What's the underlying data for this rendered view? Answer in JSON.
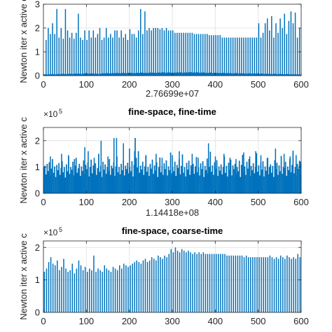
{
  "colors": {
    "bar": "#0072BD",
    "axis": "#262626",
    "grid": "#dfdfdf"
  },
  "chart_data": [
    {
      "type": "bar",
      "title": "",
      "xlabel": "2.76699e+07",
      "ylabel": "Newton iter x active c",
      "multiplier": "",
      "xlim": [
        0,
        600
      ],
      "ylim": [
        0,
        3
      ],
      "xticks": [
        "0",
        "100",
        "200",
        "300",
        "400",
        "500",
        "600"
      ],
      "yticks": [
        "0",
        "1",
        "2",
        "3"
      ],
      "grid": true,
      "base_values": [
        0.05,
        0.06,
        0.05,
        0.06,
        0.05,
        0.06,
        0.07,
        0.06,
        0.05,
        0.06,
        0.07,
        0.06,
        0.07,
        0.08,
        0.07,
        0.06,
        0.07,
        0.08,
        0.07,
        0.08,
        0.07,
        0.08,
        0.09,
        0.08,
        0.09,
        0.08,
        0.07,
        0.08,
        0.09,
        0.1,
        0.09,
        0.08,
        0.09,
        0.1,
        0.09,
        0.08,
        0.09,
        0.08,
        0.07,
        0.08,
        0.09,
        0.1,
        0.09,
        0.1,
        0.11,
        0.1,
        0.09,
        0.1,
        0.11,
        0.1,
        0.11,
        0.12,
        0.11,
        0.1,
        0.11,
        0.12,
        0.11,
        0.1,
        0.11,
        0.12,
        0.11,
        0.12,
        0.11,
        0.1,
        0.11,
        0.12,
        0.11,
        0.12,
        0.13,
        0.12,
        0.11,
        0.12,
        0.11,
        0.12,
        0.13,
        0.12,
        0.13,
        0.12,
        0.11,
        0.12,
        0.13,
        0.12,
        0.13,
        0.14,
        0.13,
        0.12,
        0.13,
        0.14,
        0.13,
        0.12,
        0.13,
        0.12,
        0.13,
        0.14,
        0.13,
        0.14,
        0.13,
        0.12,
        0.13,
        0.14,
        0.13,
        0.14,
        0.15,
        0.14,
        0.13,
        0.14,
        0.13,
        0.14,
        0.13,
        0.12,
        0.13,
        0.14,
        0.13,
        0.12,
        0.11,
        0.12,
        0.13,
        0.12,
        0.11,
        0.12,
        0.11,
        0.12,
        0.11,
        0.1,
        0.11,
        0.12,
        0.11,
        0.1,
        0.11,
        0.1,
        0.11,
        0.1,
        0.09,
        0.1,
        0.11,
        0.1,
        0.09,
        0.1,
        0.09,
        0.1,
        0.09,
        0.08,
        0.09,
        0.1,
        0.09,
        0.08,
        0.09,
        0.08,
        0.09,
        0.08,
        0.07,
        0.08,
        0.09,
        0.08,
        0.07,
        0.08,
        0.07,
        0.08,
        0.07,
        0.06,
        0.07,
        0.08,
        0.07,
        0.06,
        0.07,
        0.06,
        0.07,
        0.06,
        0.05,
        0.06,
        0.07,
        0.06,
        0.05,
        0.06,
        0.05,
        0.06,
        0.05,
        0.06,
        0.05,
        0.04
      ],
      "spikes": [
        {
          "x": 6,
          "y": 1.5
        },
        {
          "x": 11,
          "y": 2.0
        },
        {
          "x": 16,
          "y": 1.75
        },
        {
          "x": 21,
          "y": 2.2
        },
        {
          "x": 26,
          "y": 1.75
        },
        {
          "x": 31,
          "y": 2.8
        },
        {
          "x": 36,
          "y": 1.6
        },
        {
          "x": 41,
          "y": 2.0
        },
        {
          "x": 46,
          "y": 1.55
        },
        {
          "x": 51,
          "y": 2.8
        },
        {
          "x": 56,
          "y": 1.9
        },
        {
          "x": 61,
          "y": 1.6
        },
        {
          "x": 66,
          "y": 1.8
        },
        {
          "x": 71,
          "y": 1.55
        },
        {
          "x": 76,
          "y": 1.8
        },
        {
          "x": 81,
          "y": 2.6
        },
        {
          "x": 86,
          "y": 1.6
        },
        {
          "x": 91,
          "y": 1.5
        },
        {
          "x": 96,
          "y": 1.9
        },
        {
          "x": 101,
          "y": 1.5
        },
        {
          "x": 106,
          "y": 1.9
        },
        {
          "x": 111,
          "y": 1.6
        },
        {
          "x": 116,
          "y": 1.9
        },
        {
          "x": 121,
          "y": 1.6
        },
        {
          "x": 126,
          "y": 1.75
        },
        {
          "x": 131,
          "y": 2.0
        },
        {
          "x": 136,
          "y": 1.5
        },
        {
          "x": 141,
          "y": 1.6
        },
        {
          "x": 146,
          "y": 2.0
        },
        {
          "x": 151,
          "y": 1.6
        },
        {
          "x": 156,
          "y": 1.75
        },
        {
          "x": 161,
          "y": 1.6
        },
        {
          "x": 166,
          "y": 1.9
        },
        {
          "x": 171,
          "y": 1.9
        },
        {
          "x": 176,
          "y": 1.6
        },
        {
          "x": 181,
          "y": 1.9
        },
        {
          "x": 186,
          "y": 1.6
        },
        {
          "x": 191,
          "y": 1.75
        },
        {
          "x": 196,
          "y": 1.5
        },
        {
          "x": 201,
          "y": 1.95
        },
        {
          "x": 206,
          "y": 1.75
        },
        {
          "x": 211,
          "y": 1.75
        },
        {
          "x": 216,
          "y": 1.6
        },
        {
          "x": 221,
          "y": 1.9
        },
        {
          "x": 226,
          "y": 2.8
        },
        {
          "x": 231,
          "y": 1.75
        },
        {
          "x": 236,
          "y": 2.7
        },
        {
          "x": 241,
          "y": 1.9
        },
        {
          "x": 246,
          "y": 2.0
        },
        {
          "x": 251,
          "y": 1.9
        },
        {
          "x": 256,
          "y": 2.0
        },
        {
          "x": 261,
          "y": 2.0
        },
        {
          "x": 266,
          "y": 2.0
        },
        {
          "x": 271,
          "y": 1.95
        },
        {
          "x": 276,
          "y": 2.0
        },
        {
          "x": 281,
          "y": 1.9
        },
        {
          "x": 286,
          "y": 2.0
        },
        {
          "x": 291,
          "y": 1.9
        },
        {
          "x": 296,
          "y": 1.9
        },
        {
          "x": 301,
          "y": 1.9
        },
        {
          "x": 306,
          "y": 1.8
        },
        {
          "x": 311,
          "y": 1.8
        },
        {
          "x": 316,
          "y": 1.8
        },
        {
          "x": 321,
          "y": 1.8
        },
        {
          "x": 326,
          "y": 1.8
        },
        {
          "x": 331,
          "y": 1.8
        },
        {
          "x": 336,
          "y": 1.8
        },
        {
          "x": 341,
          "y": 1.8
        },
        {
          "x": 346,
          "y": 1.8
        },
        {
          "x": 351,
          "y": 1.75
        },
        {
          "x": 356,
          "y": 1.75
        },
        {
          "x": 361,
          "y": 1.75
        },
        {
          "x": 366,
          "y": 1.75
        },
        {
          "x": 371,
          "y": 1.75
        },
        {
          "x": 376,
          "y": 1.75
        },
        {
          "x": 381,
          "y": 1.75
        },
        {
          "x": 386,
          "y": 1.7
        },
        {
          "x": 391,
          "y": 1.7
        },
        {
          "x": 396,
          "y": 1.7
        },
        {
          "x": 401,
          "y": 1.7
        },
        {
          "x": 406,
          "y": 1.7
        },
        {
          "x": 411,
          "y": 1.7
        },
        {
          "x": 416,
          "y": 1.6
        },
        {
          "x": 421,
          "y": 1.6
        },
        {
          "x": 426,
          "y": 1.6
        },
        {
          "x": 431,
          "y": 1.6
        },
        {
          "x": 436,
          "y": 1.6
        },
        {
          "x": 441,
          "y": 1.6
        },
        {
          "x": 446,
          "y": 1.6
        },
        {
          "x": 451,
          "y": 1.6
        },
        {
          "x": 456,
          "y": 1.6
        },
        {
          "x": 461,
          "y": 1.6
        },
        {
          "x": 466,
          "y": 1.6
        },
        {
          "x": 471,
          "y": 1.6
        },
        {
          "x": 476,
          "y": 1.6
        },
        {
          "x": 481,
          "y": 1.6
        },
        {
          "x": 486,
          "y": 1.6
        },
        {
          "x": 491,
          "y": 1.6
        },
        {
          "x": 496,
          "y": 1.6
        },
        {
          "x": 501,
          "y": 2.2
        },
        {
          "x": 506,
          "y": 1.6
        },
        {
          "x": 511,
          "y": 1.8
        },
        {
          "x": 516,
          "y": 2.2
        },
        {
          "x": 521,
          "y": 2.4
        },
        {
          "x": 526,
          "y": 1.9
        },
        {
          "x": 531,
          "y": 2.5
        },
        {
          "x": 536,
          "y": 1.6
        },
        {
          "x": 541,
          "y": 2.2
        },
        {
          "x": 546,
          "y": 1.8
        },
        {
          "x": 551,
          "y": 2.4
        },
        {
          "x": 556,
          "y": 2.0
        },
        {
          "x": 561,
          "y": 2.6
        },
        {
          "x": 566,
          "y": 1.75
        },
        {
          "x": 571,
          "y": 2.3
        },
        {
          "x": 576,
          "y": 2.7
        },
        {
          "x": 581,
          "y": 2.2
        },
        {
          "x": 586,
          "y": 2.65
        },
        {
          "x": 591,
          "y": 1.6
        },
        {
          "x": 596,
          "y": 2.0
        }
      ]
    },
    {
      "type": "bar",
      "title": "fine-space, fine-time",
      "xlabel": "1.14418e+08",
      "ylabel": "Newton iter x active c",
      "multiplier": "×10",
      "multiplier_exp": "5",
      "xlim": [
        0,
        600
      ],
      "ylim": [
        0,
        2.5
      ],
      "xticks": [
        "0",
        "100",
        "200",
        "300",
        "400",
        "500",
        "600"
      ],
      "yticks": [
        "0",
        "1",
        "2"
      ],
      "grid": true,
      "values": [
        0.98,
        1.05,
        0.72,
        1.12,
        0.85,
        1.18,
        0.66,
        0.94,
        1.3,
        0.78,
        1.02,
        0.62,
        1.08,
        0.88,
        1.15,
        0.7,
        0.96,
        1.22,
        0.8,
        1.0,
        0.6,
        1.1,
        0.84,
        1.4,
        0.74,
        1.0,
        0.9,
        1.2,
        0.68,
        1.05,
        1.35,
        0.78,
        0.95,
        1.12,
        0.66,
        1.02,
        0.85,
        1.25,
        0.72,
        1.08,
        0.92,
        1.18,
        0.64,
        1.0,
        1.28,
        0.76,
        1.06,
        0.88,
        1.14,
        0.7,
        0.96,
        1.5,
        0.82,
        1.04,
        0.62,
        1.2,
        0.9,
        1.1,
        0.74,
        1.0,
        0.86,
        1.3,
        0.7,
        1.05,
        0.95,
        1.18,
        0.66,
        1.02,
        1.4,
        0.8,
        1.0,
        0.72,
        1.12,
        0.88,
        1.25,
        0.68,
        1.05,
        0.92,
        1.16,
        0.76,
        1.0,
        0.84,
        1.22,
        0.64,
        1.08,
        2.1,
        1.35,
        0.98,
        1.6,
        0.78,
        1.05,
        0.9,
        1.2,
        0.7,
        1.02,
        1.45,
        0.82,
        1.0,
        0.66,
        1.12,
        0.94,
        1.28,
        0.74,
        1.06,
        0.86,
        1.18,
        0.62,
        1.0,
        1.36,
        0.8,
        1.04,
        0.7,
        1.14,
        0.92,
        1.25,
        0.68,
        1.02,
        0.88,
        1.55,
        0.76,
        1.0,
        0.84,
        1.2,
        0.66,
        1.08,
        0.96,
        1.3,
        0.72,
        1.04,
        1.48,
        0.78,
        1.0,
        0.64,
        1.16,
        0.9,
        1.24,
        0.7,
        1.06,
        0.86,
        1.12,
        0.74,
        1.02,
        1.38,
        0.8,
        0.98,
        0.68,
        1.14,
        0.92,
        1.22,
        0.62,
        1.04,
        0.88,
        1.32,
        0.76,
        1.0,
        1.58,
        0.82,
        1.06,
        0.7,
        1.18,
        0.94,
        1.26,
        0.66,
        1.02,
        0.86,
        1.1,
        0.72,
        1.0,
        1.4,
        0.78,
        1.04,
        0.64,
        1.16,
        0.9,
        1.28,
        0.68,
        1.06,
        0.92,
        1.12,
        0.74,
        1.0,
        0.84,
        1.24,
        0.62,
        1.08,
        1.46,
        0.8,
        1.02,
        0.7,
        1.2,
        0.94,
        1.3,
        0.66,
        1.04,
        0.88,
        1.14,
        0.76,
        1.0,
        1.52,
        0.82,
        1.06,
        0.68,
        1.18,
        0.9,
        1.22,
        0.64,
        1.02,
        0.86,
        1.34,
        0.72,
        1.0,
        1.1,
        0.78,
        1.04,
        0.62,
        1.26,
        0.92,
        1.16,
        0.7,
        1.06,
        0.84,
        1.42,
        0.74,
        1.0,
        0.96,
        1.2,
        0.66,
        1.02,
        0.88,
        1.3,
        0.8,
        1.08,
        1.62,
        0.76,
        1.0,
        0.64,
        1.12,
        0.94,
        1.24,
        0.7
      ],
      "spikes": [
        {
          "x": 16,
          "y": 1.4
        },
        {
          "x": 42,
          "y": 1.5
        },
        {
          "x": 58,
          "y": 1.45
        },
        {
          "x": 72,
          "y": 1.3
        },
        {
          "x": 96,
          "y": 1.75
        },
        {
          "x": 104,
          "y": 1.6
        },
        {
          "x": 118,
          "y": 1.35
        },
        {
          "x": 134,
          "y": 2.0
        },
        {
          "x": 150,
          "y": 1.4
        },
        {
          "x": 164,
          "y": 2.1
        },
        {
          "x": 170,
          "y": 2.1
        },
        {
          "x": 186,
          "y": 1.9
        },
        {
          "x": 200,
          "y": 1.7
        },
        {
          "x": 212,
          "y": 1.6
        },
        {
          "x": 238,
          "y": 1.4
        },
        {
          "x": 262,
          "y": 1.5
        },
        {
          "x": 276,
          "y": 1.35
        },
        {
          "x": 300,
          "y": 1.45
        },
        {
          "x": 316,
          "y": 1.6
        },
        {
          "x": 346,
          "y": 1.5
        },
        {
          "x": 360,
          "y": 1.35
        },
        {
          "x": 384,
          "y": 1.9
        },
        {
          "x": 400,
          "y": 1.4
        },
        {
          "x": 420,
          "y": 1.5
        },
        {
          "x": 434,
          "y": 1.35
        },
        {
          "x": 448,
          "y": 1.3
        },
        {
          "x": 466,
          "y": 1.55
        },
        {
          "x": 480,
          "y": 1.4
        },
        {
          "x": 494,
          "y": 1.6
        },
        {
          "x": 506,
          "y": 1.45
        },
        {
          "x": 522,
          "y": 1.35
        },
        {
          "x": 540,
          "y": 1.7
        },
        {
          "x": 560,
          "y": 1.5
        },
        {
          "x": 574,
          "y": 1.4
        },
        {
          "x": 588,
          "y": 1.45
        },
        {
          "x": 598,
          "y": 1.2
        }
      ]
    },
    {
      "type": "bar",
      "title": "fine-space, coarse-time",
      "xlabel": "",
      "ylabel": "Newton iter x active c",
      "multiplier": "×10",
      "multiplier_exp": "5",
      "xlim": [
        0,
        600
      ],
      "ylim": [
        0,
        2.2
      ],
      "xticks": [
        "0",
        "100",
        "200",
        "300",
        "400",
        "500",
        "600"
      ],
      "yticks": [
        "0",
        "1",
        "2"
      ],
      "grid": true,
      "values": [
        1.25,
        1.35,
        1.55,
        1.7,
        1.5,
        1.45,
        1.6,
        1.3,
        1.4,
        1.65,
        1.35,
        1.25,
        1.3,
        1.5,
        1.2,
        1.35,
        1.6,
        1.45,
        1.3,
        1.4,
        1.25,
        1.35,
        1.3,
        1.75,
        1.25,
        1.35,
        1.3,
        1.25,
        1.45,
        1.35,
        1.3,
        1.25,
        1.4,
        1.35,
        1.3,
        1.45,
        1.35,
        1.5,
        1.45,
        1.4,
        1.45,
        1.5,
        1.55,
        1.6,
        1.55,
        1.5,
        1.6,
        1.65,
        1.55,
        1.6,
        1.7,
        1.65,
        1.6,
        1.75,
        1.7,
        1.65,
        1.75,
        1.7,
        1.8,
        1.95,
        1.85,
        2.0,
        1.9,
        1.85,
        1.95,
        1.9,
        1.85,
        1.9,
        1.85,
        1.8,
        1.85,
        1.8,
        1.85,
        1.8,
        1.85,
        1.8,
        1.8,
        1.8,
        1.8,
        1.8,
        1.8,
        1.8,
        1.8,
        1.8,
        1.8,
        1.75,
        1.75,
        1.75,
        1.75,
        1.75,
        1.75,
        1.75,
        1.75,
        1.7,
        1.75,
        1.7,
        1.7,
        1.7,
        1.7,
        1.7,
        1.7,
        1.7,
        1.7,
        1.7,
        1.7,
        1.75,
        1.7,
        1.65,
        1.7,
        1.65,
        1.75,
        1.7,
        1.65,
        1.75,
        1.7,
        1.65,
        1.7,
        1.65,
        1.8,
        1.7
      ]
    }
  ]
}
